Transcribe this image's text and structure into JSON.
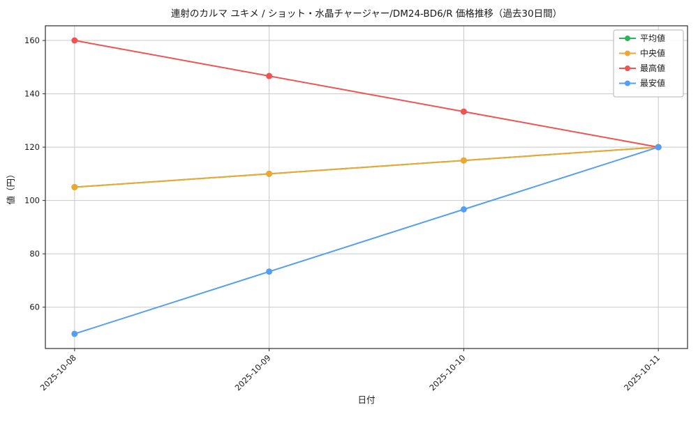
{
  "chart_data": {
    "type": "line",
    "title": "連射のカルマ ユキメ / ショット・水晶チャージャー/DM24-BD6/R 価格推移（過去30日間）",
    "xlabel": "日付",
    "ylabel": "値（円）",
    "categories": [
      "2025-10-08",
      "2025-10-09",
      "2025-10-10",
      "2025-10-11"
    ],
    "series": [
      {
        "name": "平均値",
        "key": "average",
        "color": "#2bb358",
        "values": [
          105,
          110,
          115,
          120
        ]
      },
      {
        "name": "中央値",
        "key": "median",
        "color": "#f0a732",
        "values": [
          105,
          110,
          115,
          120
        ]
      },
      {
        "name": "最高値",
        "key": "max",
        "color": "#f25252",
        "values": [
          160,
          146.67,
          133.33,
          120
        ]
      },
      {
        "name": "最安値",
        "key": "min",
        "color": "#549ef5",
        "values": [
          50,
          73.33,
          96.67,
          120
        ]
      }
    ],
    "ylim": [
      44.5,
      165.5
    ],
    "yticks": [
      60,
      80,
      100,
      120,
      140,
      160
    ],
    "grid": true,
    "legend_position": "upper right",
    "colors": {
      "grid": "#c9c9c9",
      "axis_edge": "#2d2d2d",
      "legend_border": "#b3b3b3",
      "background": "#ffffff"
    }
  }
}
